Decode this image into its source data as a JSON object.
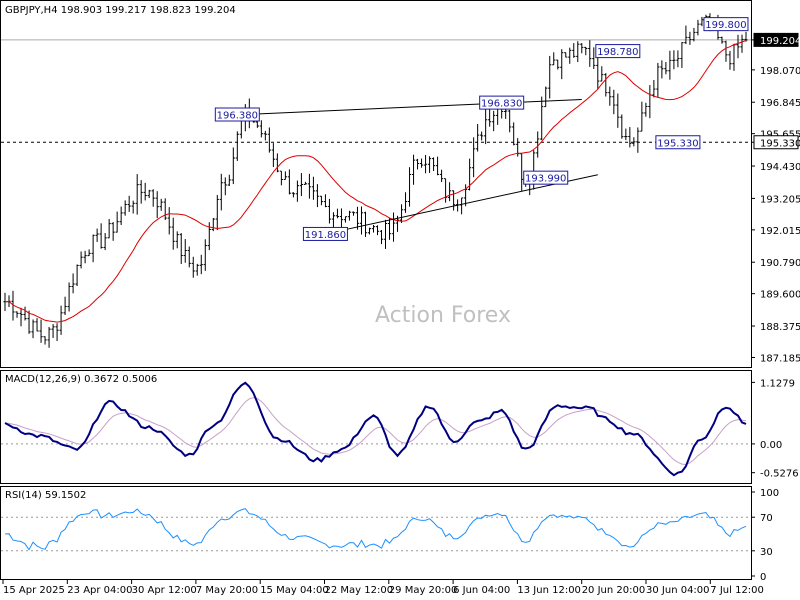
{
  "colors": {
    "background": "#ffffff",
    "candle": "#000000",
    "moving_average": "#dd0000",
    "trendline": "#000000",
    "label_border": "#1a1aa0",
    "label_text": "#1a1aa0",
    "macd_line": "#000080",
    "macd_signal": "#c8a0c8",
    "rsi_line": "#1e90ff",
    "grid_dotted": "#999999",
    "watermark": "#c0c0c0",
    "current_price_box": "#000000",
    "current_price_text": "#ffffff"
  },
  "chart_data": [
    {
      "type": "candlestick",
      "title": "GBPJPY,H4  198.903 199.217 198.823 199.204",
      "watermark": "Action Forex",
      "ylim": [
        186.9,
        200.6
      ],
      "y_ticks": [
        199.204,
        198.07,
        196.845,
        195.655,
        195.33,
        194.43,
        193.205,
        192.015,
        190.79,
        189.6,
        188.375,
        187.185
      ],
      "current_price": 199.204,
      "horizontal_line": 195.33,
      "x_tick_labels": [
        "15 Apr 2025",
        "23 Apr 04:00",
        "30 Apr 12:00",
        "7 May 20:00",
        "15 May 04:00",
        "22 May 12:00",
        "29 May 20:00",
        "6 Jun 04:00",
        "13 Jun 12:00",
        "20 Jun 20:00",
        "30 Jun 04:00",
        "7 Jul 12:00"
      ],
      "anchor_bar_indices": [
        0,
        10,
        22,
        35,
        48,
        55,
        60,
        73,
        84,
        96,
        104,
        112,
        122,
        124,
        130,
        137,
        145,
        150,
        156,
        164,
        175,
        181,
        185
      ],
      "anchor_prices": [
        189.3,
        188.0,
        191.5,
        193.5,
        190.6,
        194.0,
        196.3,
        193.5,
        192.6,
        191.9,
        194.8,
        193.2,
        196.5,
        196.8,
        193.99,
        198.5,
        198.78,
        197.5,
        195.33,
        198.0,
        199.8,
        198.6,
        199.204
      ],
      "bar_count": 186,
      "annotations": [
        {
          "label": "196.380",
          "bar": 58,
          "price": 196.38
        },
        {
          "label": "196.830",
          "bar": 124,
          "price": 196.83
        },
        {
          "label": "191.860",
          "bar": 80,
          "price": 191.86
        },
        {
          "label": "193.990",
          "bar": 135,
          "price": 193.99
        },
        {
          "label": "198.780",
          "bar": 153,
          "price": 198.78
        },
        {
          "label": "195.330",
          "bar": 168,
          "price": 195.33
        },
        {
          "label": "199.800",
          "bar": 180,
          "price": 199.8
        }
      ],
      "trendlines": [
        {
          "from": {
            "bar": 60,
            "price": 196.38
          },
          "to": {
            "bar": 144,
            "price": 196.95
          }
        },
        {
          "from": {
            "bar": 80,
            "price": 191.86
          },
          "to": {
            "bar": 148,
            "price": 194.1
          }
        }
      ]
    },
    {
      "type": "line",
      "title": "MACD(12,26,9) 0.3672 0.5006",
      "ylim": [
        -0.68,
        1.3
      ],
      "y_ticks": [
        1.1279,
        0.0,
        -0.5276
      ],
      "macd_anchor_bar_indices": [
        0,
        8,
        18,
        26,
        36,
        46,
        52,
        60,
        68,
        78,
        84,
        92,
        98,
        106,
        112,
        118,
        124,
        130,
        138,
        146,
        150,
        156,
        168,
        174,
        180,
        185
      ],
      "macd_anchor_values": [
        0.35,
        0.15,
        -0.1,
        0.75,
        0.3,
        -0.2,
        0.35,
        1.1,
        0.1,
        -0.3,
        -0.1,
        0.5,
        -0.2,
        0.7,
        0.05,
        0.4,
        0.6,
        -0.1,
        0.7,
        0.65,
        0.45,
        0.2,
        -0.55,
        0.1,
        0.7,
        0.3672
      ]
    },
    {
      "type": "line",
      "title": "RSI(14) 59.1502",
      "ylim": [
        0,
        100
      ],
      "y_ticks": [
        100,
        70,
        30,
        0
      ],
      "levels": [
        70,
        30
      ],
      "last_value": 59.1502
    }
  ]
}
